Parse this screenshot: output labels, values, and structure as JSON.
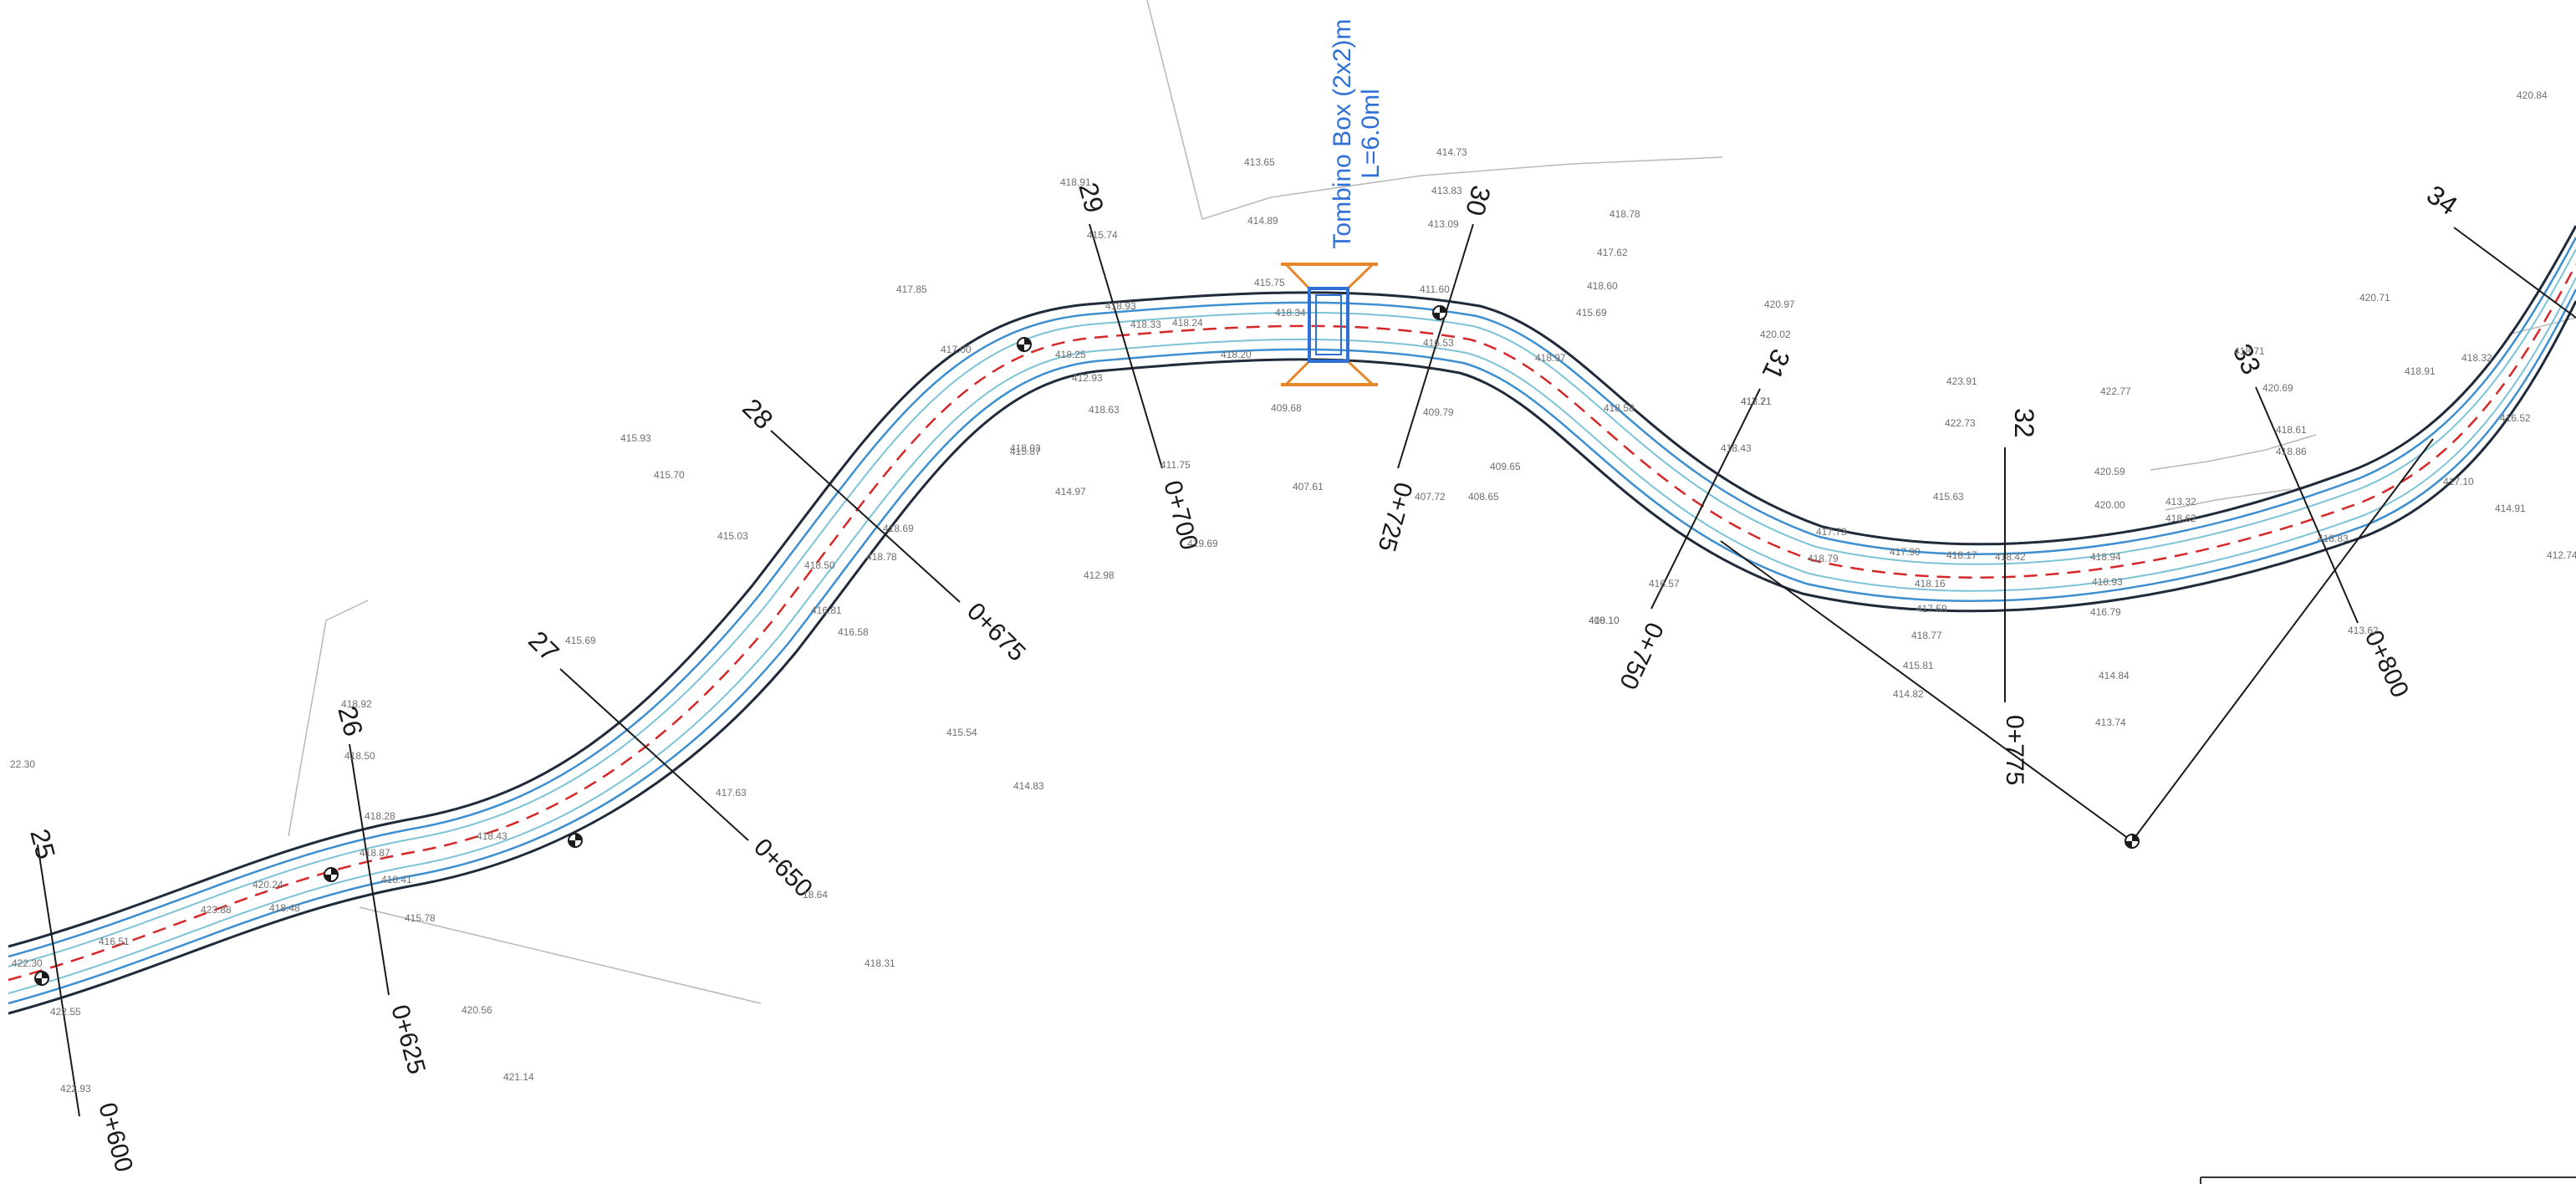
{
  "culvert": {
    "title": "Tombino Box (2x2)m",
    "length": "L=6.0ml",
    "color_text": "#2f6fd6",
    "color_wing": "#e8862a"
  },
  "colors": {
    "edge": "#1f2a3a",
    "lane": "#3d8fd0",
    "inner": "#7cc3d6",
    "axis": "#d62828",
    "section": "#1a1a1a",
    "elevation": "#6f6f6f"
  },
  "sections": [
    {
      "id": "sec-25",
      "number": "25",
      "chainage": "0+600"
    },
    {
      "id": "sec-26",
      "number": "26",
      "chainage": "0+625"
    },
    {
      "id": "sec-27",
      "number": "27",
      "chainage": "0+650"
    },
    {
      "id": "sec-28",
      "number": "28",
      "chainage": "0+675"
    },
    {
      "id": "sec-29",
      "number": "29",
      "chainage": "0+700"
    },
    {
      "id": "sec-30",
      "number": "30",
      "chainage": "0+725"
    },
    {
      "id": "sec-31",
      "number": "31",
      "chainage": "0+750"
    },
    {
      "id": "sec-32",
      "number": "32",
      "chainage": "0+775"
    },
    {
      "id": "sec-33",
      "number": "33",
      "chainage": "0+800"
    },
    {
      "id": "sec-34",
      "number": "34",
      "chainage": ""
    }
  ],
  "elevations": [
    "420.84",
    "413.65",
    "414.73",
    "418.91",
    "413.83",
    "414.89",
    "415.74",
    "413.09",
    "418.78",
    "417.62",
    "418.60",
    "417.85",
    "415.75",
    "411.60",
    "415.69",
    "418.93",
    "420.97",
    "418.34",
    "417.00",
    "418.33",
    "418.24",
    "418.25",
    "420.02",
    "416.53",
    "418.97",
    "418.20",
    "420.71",
    "418.71",
    "412.93",
    "409.68",
    "409.79",
    "418.58",
    "417.71",
    "423.91",
    "422.77",
    "420.69",
    "418.91",
    "418.32",
    "418.63",
    "422.73",
    "418.61",
    "415.93",
    "418.03",
    "413.21",
    "418.86",
    "416.52",
    "415.70",
    "411.75",
    "407.61",
    "407.72",
    "409.65",
    "418.43",
    "420.59",
    "413.32",
    "417.10",
    "414.97",
    "415.87",
    "408.65",
    "415.63",
    "420.00",
    "418.62",
    "414.91",
    "415.03",
    "419.69",
    "418.69",
    "418.83",
    "412.74",
    "417.73",
    "418.79",
    "418.93",
    "412.98",
    "417.90",
    "418.17",
    "418.42",
    "418.94",
    "416.57",
    "418.50",
    "418.78",
    "418.16",
    "416.79",
    "415.69",
    "416.81",
    "408.10",
    "417.59",
    "416.58",
    "418.77",
    "413.62",
    "418.92",
    "415.81",
    "414.84",
    "418.50",
    "415.54",
    "414.82",
    "413.74",
    "22.30",
    "417.63",
    "414.83",
    "418.28",
    "418.43",
    "418.87",
    "18.64",
    "420.24",
    "420.56",
    "423.88",
    "422.55",
    "418.31",
    "421.14",
    "422.93",
    "415.78",
    "418.41",
    "416.51",
    "418.48",
    "422.30",
    "410.10"
  ]
}
